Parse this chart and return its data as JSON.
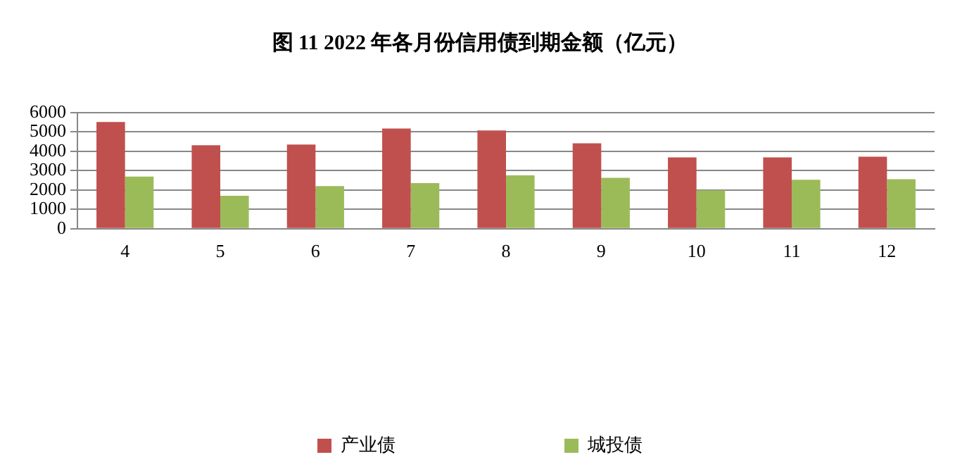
{
  "chart_data": {
    "type": "bar",
    "title": "图 11 2022 年各月份信用债到期金额（亿元）",
    "categories": [
      "4",
      "5",
      "6",
      "7",
      "8",
      "9",
      "10",
      "11",
      "12"
    ],
    "series": [
      {
        "name": "产业债",
        "color": "#c0504d",
        "values": [
          5520,
          4320,
          4350,
          5180,
          5080,
          4420,
          3690,
          3690,
          3720
        ]
      },
      {
        "name": "城投债",
        "color": "#9bbb59",
        "values": [
          2700,
          1700,
          2200,
          2360,
          2760,
          2630,
          1990,
          2530,
          2560
        ]
      }
    ],
    "ylim": [
      0,
      6000
    ],
    "yticks": [
      0,
      1000,
      2000,
      3000,
      4000,
      5000,
      6000
    ],
    "grid": "y",
    "legend": "bottom"
  }
}
